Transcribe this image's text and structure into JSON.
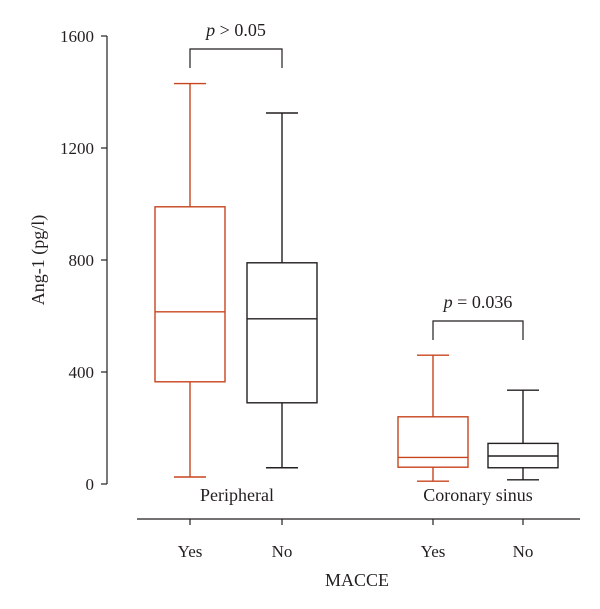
{
  "chart_data": {
    "type": "box",
    "ylabel": "Ang-1 (pg/l)",
    "xlabel": "MACCE",
    "ylim": [
      0,
      1600
    ],
    "yticks": [
      0,
      400,
      800,
      1200,
      1600
    ],
    "categories": [
      "Yes",
      "No",
      "Yes",
      "No"
    ],
    "groups": [
      {
        "label": "Peripheral",
        "p_prefix": "p",
        "p_text": " > 0.05",
        "boxes": [
          {
            "category": "Yes",
            "color": "#c8441e",
            "min": 25,
            "q1": 365,
            "median": 615,
            "q3": 990,
            "max": 1430
          },
          {
            "category": "No",
            "color": "#231f20",
            "min": 58,
            "q1": 290,
            "median": 590,
            "q3": 790,
            "max": 1325
          }
        ]
      },
      {
        "label": "Coronary sinus",
        "p_prefix": "p",
        "p_text": " = 0.036",
        "boxes": [
          {
            "category": "Yes",
            "color": "#c8441e",
            "min": 10,
            "q1": 60,
            "median": 95,
            "q3": 240,
            "max": 460
          },
          {
            "category": "No",
            "color": "#231f20",
            "min": 15,
            "q1": 58,
            "median": 100,
            "q3": 145,
            "max": 335
          }
        ]
      }
    ]
  }
}
